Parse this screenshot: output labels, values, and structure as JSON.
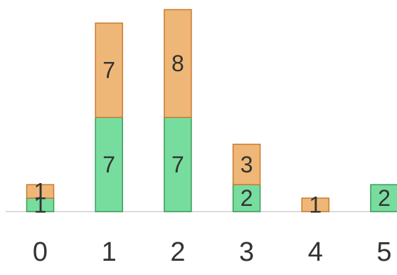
{
  "chart_data": {
    "type": "bar",
    "stacked": true,
    "categories": [
      "0",
      "1",
      "2",
      "3",
      "4",
      "5"
    ],
    "series": [
      {
        "values": [
          1,
          7,
          7,
          2,
          0,
          2
        ],
        "color": "#77dd9f",
        "stroke": "#3a9a5a"
      },
      {
        "values": [
          1,
          7,
          8,
          3,
          1,
          0
        ],
        "color": "#efb777",
        "stroke": "#c97a2e"
      }
    ],
    "data_labels": [
      [
        "1",
        "7",
        "7",
        "2",
        "",
        "2"
      ],
      [
        "1",
        "7",
        "8",
        "3",
        "1",
        ""
      ]
    ],
    "ylim": [
      0,
      15
    ],
    "legend": "none",
    "grid": false
  }
}
